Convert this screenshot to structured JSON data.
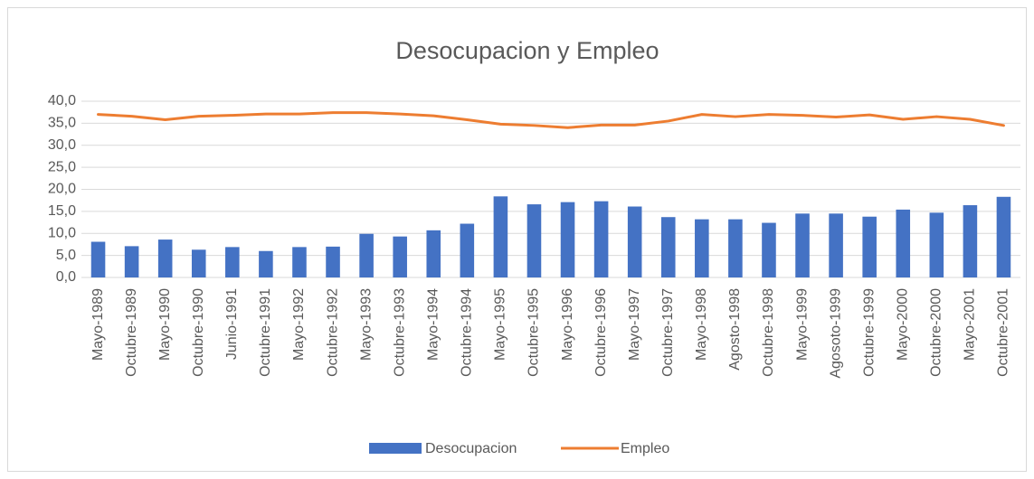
{
  "chart_data": {
    "type": "bar-line",
    "title": "Desocupacion y Empleo",
    "categories": [
      "Mayo-1989",
      "Octubre-1989",
      "Mayo-1990",
      "Octubre-1990",
      "Junio-1991",
      "Octubre-1991",
      "Mayo-1992",
      "Octubre-1992",
      "Mayo-1993",
      "Octubre-1993",
      "Mayo-1994",
      "Octubre-1994",
      "Mayo-1995",
      "Octubre-1995",
      "Mayo-1996",
      "Octubre-1996",
      "Mayo-1997",
      "Octubre-1997",
      "Mayo-1998",
      "Agosto-1998",
      "Octubre-1998",
      "Mayo-1999",
      "Agosoto-1999",
      "Octubre-1999",
      "Mayo-2000",
      "Octubre-2000",
      "Mayo-2001",
      "Octubre-2001"
    ],
    "series": [
      {
        "name": "Desocupacion",
        "type": "bar",
        "color": "#4472c4",
        "values": [
          8.1,
          7.1,
          8.6,
          6.3,
          6.9,
          6.0,
          6.9,
          7.0,
          9.9,
          9.3,
          10.7,
          12.2,
          18.4,
          16.6,
          17.1,
          17.3,
          16.1,
          13.7,
          13.2,
          13.2,
          12.4,
          14.5,
          14.5,
          13.8,
          15.4,
          14.7,
          16.4,
          18.3
        ]
      },
      {
        "name": "Empleo",
        "type": "line",
        "color": "#ed7d31",
        "values": [
          37.0,
          36.6,
          35.8,
          36.6,
          36.8,
          37.1,
          37.1,
          37.4,
          37.4,
          37.1,
          36.7,
          35.8,
          34.8,
          34.5,
          34.0,
          34.6,
          34.6,
          35.5,
          37.0,
          36.5,
          37.0,
          36.8,
          36.4,
          36.9,
          35.9,
          36.5,
          35.9,
          34.5
        ]
      }
    ],
    "ylim": [
      0,
      40
    ],
    "yticks": [
      {
        "value": 0,
        "label": "0,0"
      },
      {
        "value": 5,
        "label": "5,0"
      },
      {
        "value": 10,
        "label": "10,0"
      },
      {
        "value": 15,
        "label": "15,0"
      },
      {
        "value": 20,
        "label": "20,0"
      },
      {
        "value": 25,
        "label": "25,0"
      },
      {
        "value": 30,
        "label": "30,0"
      },
      {
        "value": 35,
        "label": "35,0"
      },
      {
        "value": 40,
        "label": "40,0"
      }
    ],
    "grid": true,
    "legend": "bottom"
  }
}
